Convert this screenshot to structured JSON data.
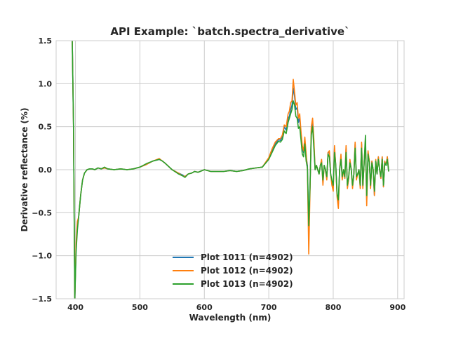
{
  "chart_data": {
    "type": "line",
    "title": "API Example: `batch.spectra_derivative`",
    "xlabel": "Wavelength (nm)",
    "ylabel": "Derivative reflectance (%)",
    "xlim": [
      370,
      910
    ],
    "ylim": [
      -1.5,
      1.5
    ],
    "xticks": [
      400,
      500,
      600,
      700,
      800,
      900
    ],
    "yticks": [
      -1.5,
      -1.0,
      -0.5,
      0.0,
      0.5,
      1.0,
      1.5
    ],
    "xtick_labels": [
      "400",
      "500",
      "600",
      "700",
      "800",
      "900"
    ],
    "ytick_labels": [
      "−1.5",
      "−1.0",
      "−0.5",
      "0.0",
      "0.5",
      "1.0",
      "1.5"
    ],
    "grid": true,
    "legend_position": "lower center",
    "colors": {
      "grid": "#cccccc",
      "axes_edge": "#cccccc",
      "text": "#262626"
    },
    "series": [
      {
        "name": "Plot 1011 (n=4902)",
        "color": "#1f77b4",
        "x": [
          395,
          397,
          399,
          401,
          403,
          405,
          408,
          411,
          414,
          418,
          422,
          426,
          430,
          435,
          440,
          445,
          450,
          460,
          470,
          480,
          490,
          500,
          510,
          520,
          530,
          535,
          540,
          550,
          560,
          566,
          570,
          575,
          580,
          585,
          590,
          600,
          610,
          620,
          630,
          640,
          650,
          660,
          670,
          680,
          690,
          700,
          705,
          710,
          715,
          718,
          721,
          724,
          727,
          730,
          732,
          734,
          736,
          738,
          740,
          742,
          744,
          746,
          748,
          750,
          752,
          754,
          756,
          758,
          760,
          762,
          764,
          766,
          768,
          770,
          772,
          774,
          776,
          778,
          780,
          782,
          784,
          786,
          788,
          790,
          792,
          794,
          796,
          798,
          800,
          802,
          804,
          806,
          808,
          810,
          812,
          814,
          816,
          818,
          820,
          822,
          824,
          826,
          828,
          830,
          832,
          834,
          836,
          838,
          840,
          842,
          844,
          846,
          848,
          850,
          852,
          854,
          856,
          858,
          860,
          862,
          864,
          866,
          868,
          870,
          872,
          874,
          876,
          878,
          880,
          882,
          884,
          886
        ],
        "y": [
          1.5,
          0.5,
          -1.5,
          -0.9,
          -0.65,
          -0.55,
          -0.3,
          -0.12,
          -0.04,
          0.0,
          0.01,
          0.01,
          0.0,
          0.02,
          0.01,
          0.02,
          0.01,
          0.0,
          0.01,
          0.0,
          0.01,
          0.03,
          0.06,
          0.1,
          0.12,
          0.1,
          0.07,
          0.0,
          -0.04,
          -0.06,
          -0.08,
          -0.05,
          -0.04,
          -0.02,
          -0.03,
          0.0,
          -0.02,
          -0.02,
          -0.02,
          -0.01,
          -0.02,
          -0.01,
          0.01,
          0.02,
          0.03,
          0.13,
          0.22,
          0.3,
          0.35,
          0.34,
          0.38,
          0.5,
          0.46,
          0.6,
          0.62,
          0.7,
          0.75,
          0.95,
          0.85,
          0.7,
          0.72,
          0.55,
          0.6,
          0.4,
          0.25,
          0.2,
          0.35,
          0.15,
          0.05,
          -0.65,
          -0.2,
          0.45,
          0.55,
          0.3,
          0.0,
          0.05,
          0.0,
          -0.05,
          0.05,
          0.1,
          -0.15,
          0.05,
          0.0,
          -0.1,
          0.2,
          0.2,
          -0.05,
          -0.15,
          -0.2,
          0.25,
          0.05,
          -0.3,
          -0.4,
          0.0,
          0.15,
          -0.1,
          0.0,
          -0.1,
          0.25,
          -0.2,
          -0.1,
          0.1,
          0.0,
          -0.2,
          -0.05,
          0.3,
          -0.1,
          -0.05,
          0.0,
          -0.2,
          0.3,
          -0.2,
          0.1,
          0.3,
          -0.35,
          0.2,
          0.1,
          -0.2,
          0.1,
          0.0,
          -0.3,
          0.1,
          -0.05,
          0.15,
          0.0,
          -0.1,
          0.15,
          -0.2,
          0.1,
          0.05,
          0.15,
          -0.02
        ]
      },
      {
        "name": "Plot 1012 (n=4902)",
        "color": "#ff7f0e",
        "x": [
          395,
          397,
          399,
          401,
          403,
          405,
          408,
          411,
          414,
          418,
          422,
          426,
          430,
          435,
          440,
          445,
          450,
          460,
          470,
          480,
          490,
          500,
          510,
          520,
          530,
          535,
          540,
          550,
          560,
          566,
          570,
          575,
          580,
          585,
          590,
          600,
          610,
          620,
          630,
          640,
          650,
          660,
          670,
          680,
          690,
          700,
          705,
          710,
          715,
          718,
          721,
          724,
          727,
          730,
          732,
          734,
          736,
          738,
          740,
          742,
          744,
          746,
          748,
          750,
          752,
          754,
          756,
          758,
          760,
          762,
          764,
          766,
          768,
          770,
          772,
          774,
          776,
          778,
          780,
          782,
          784,
          786,
          788,
          790,
          792,
          794,
          796,
          798,
          800,
          802,
          804,
          806,
          808,
          810,
          812,
          814,
          816,
          818,
          820,
          822,
          824,
          826,
          828,
          830,
          832,
          834,
          836,
          838,
          840,
          842,
          844,
          846,
          848,
          850,
          852,
          854,
          856,
          858,
          860,
          862,
          864,
          866,
          868,
          870,
          872,
          874,
          876,
          878,
          880,
          882,
          884,
          886
        ],
        "y": [
          1.5,
          0.5,
          -1.5,
          -0.85,
          -0.6,
          -0.55,
          -0.3,
          -0.12,
          -0.04,
          0.0,
          0.01,
          0.01,
          0.0,
          0.02,
          0.01,
          0.02,
          0.01,
          0.0,
          0.01,
          0.0,
          0.01,
          0.03,
          0.06,
          0.1,
          0.13,
          0.1,
          0.07,
          0.0,
          -0.04,
          -0.07,
          -0.08,
          -0.05,
          -0.04,
          -0.02,
          -0.03,
          0.0,
          -0.02,
          -0.02,
          -0.02,
          -0.01,
          -0.02,
          -0.01,
          0.01,
          0.02,
          0.03,
          0.14,
          0.24,
          0.32,
          0.36,
          0.36,
          0.4,
          0.52,
          0.5,
          0.65,
          0.68,
          0.78,
          0.8,
          1.05,
          0.9,
          0.75,
          0.78,
          0.6,
          0.65,
          0.45,
          0.28,
          0.22,
          0.38,
          0.18,
          0.0,
          -0.98,
          -0.25,
          0.5,
          0.6,
          0.35,
          0.0,
          0.05,
          0.0,
          -0.05,
          0.05,
          0.12,
          -0.18,
          0.05,
          0.0,
          -0.12,
          0.2,
          0.22,
          -0.05,
          -0.18,
          -0.25,
          0.28,
          0.05,
          -0.32,
          -0.45,
          0.0,
          0.18,
          -0.12,
          0.0,
          -0.1,
          0.28,
          -0.22,
          -0.1,
          0.12,
          0.0,
          -0.22,
          -0.05,
          0.32,
          -0.12,
          -0.05,
          0.0,
          -0.22,
          0.32,
          -0.22,
          0.1,
          0.35,
          -0.42,
          0.22,
          0.1,
          -0.22,
          0.1,
          0.0,
          -0.3,
          0.12,
          -0.05,
          0.15,
          0.0,
          -0.1,
          0.15,
          -0.2,
          0.1,
          0.05,
          0.15,
          -0.02
        ]
      },
      {
        "name": "Plot 1013 (n=4902)",
        "color": "#2ca02c",
        "x": [
          395,
          397,
          399,
          401,
          403,
          405,
          408,
          411,
          414,
          418,
          422,
          426,
          430,
          435,
          440,
          445,
          450,
          460,
          470,
          480,
          490,
          500,
          510,
          520,
          530,
          535,
          540,
          550,
          560,
          566,
          570,
          575,
          580,
          585,
          590,
          600,
          610,
          620,
          630,
          640,
          650,
          660,
          670,
          680,
          690,
          700,
          705,
          710,
          715,
          718,
          721,
          724,
          727,
          730,
          732,
          734,
          736,
          738,
          740,
          742,
          744,
          746,
          748,
          750,
          752,
          754,
          756,
          758,
          760,
          762,
          764,
          766,
          768,
          770,
          772,
          774,
          776,
          778,
          780,
          782,
          784,
          786,
          788,
          790,
          792,
          794,
          796,
          798,
          800,
          802,
          804,
          806,
          808,
          810,
          812,
          814,
          816,
          818,
          820,
          822,
          824,
          826,
          828,
          830,
          832,
          834,
          836,
          838,
          840,
          842,
          844,
          846,
          848,
          850,
          852,
          854,
          856,
          858,
          860,
          862,
          864,
          866,
          868,
          870,
          872,
          874,
          876,
          878,
          880,
          882,
          884,
          886
        ],
        "y": [
          1.5,
          0.5,
          -1.5,
          -0.95,
          -0.7,
          -0.55,
          -0.3,
          -0.12,
          -0.04,
          0.0,
          0.01,
          0.01,
          0.0,
          0.02,
          0.01,
          0.03,
          0.01,
          0.0,
          0.01,
          0.0,
          0.01,
          0.03,
          0.07,
          0.1,
          0.12,
          0.1,
          0.07,
          0.0,
          -0.05,
          -0.07,
          -0.09,
          -0.05,
          -0.04,
          -0.02,
          -0.03,
          0.0,
          -0.02,
          -0.02,
          -0.02,
          -0.01,
          -0.02,
          -0.01,
          0.01,
          0.02,
          0.03,
          0.12,
          0.2,
          0.28,
          0.33,
          0.32,
          0.35,
          0.45,
          0.42,
          0.55,
          0.6,
          0.65,
          0.7,
          0.8,
          0.75,
          0.62,
          0.6,
          0.48,
          0.5,
          0.35,
          0.18,
          0.15,
          0.3,
          0.1,
          0.02,
          -0.65,
          -0.2,
          0.4,
          0.5,
          0.25,
          0.0,
          0.05,
          0.0,
          -0.05,
          0.05,
          0.08,
          -0.12,
          0.05,
          0.0,
          -0.08,
          0.18,
          0.15,
          -0.05,
          -0.12,
          -0.18,
          0.2,
          0.05,
          -0.28,
          -0.35,
          0.0,
          0.12,
          -0.08,
          0.0,
          -0.08,
          0.2,
          -0.18,
          -0.08,
          0.08,
          0.0,
          -0.18,
          -0.05,
          0.25,
          -0.08,
          -0.05,
          0.0,
          -0.18,
          0.25,
          -0.18,
          0.08,
          0.4,
          -0.3,
          0.18,
          0.08,
          -0.18,
          0.08,
          0.0,
          -0.25,
          0.1,
          -0.05,
          0.12,
          0.0,
          -0.08,
          0.12,
          -0.18,
          0.08,
          0.05,
          0.12,
          -0.02
        ]
      }
    ]
  }
}
